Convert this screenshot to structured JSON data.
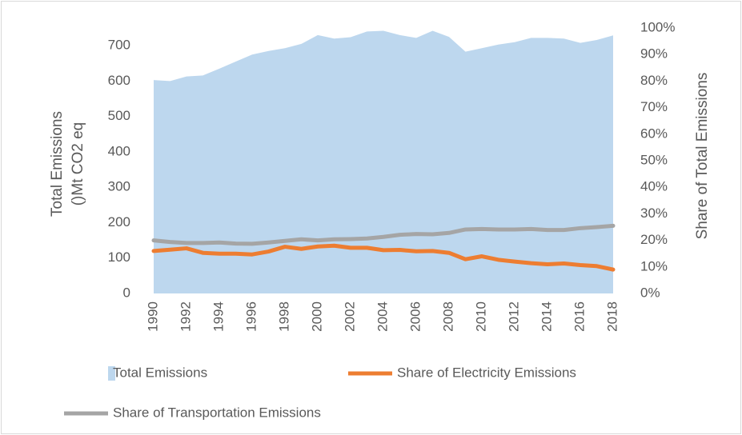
{
  "chart_data": {
    "type": "area_line",
    "categories": [
      "1990",
      null,
      "1992",
      null,
      "1994",
      null,
      "1996",
      null,
      "1998",
      null,
      "2000",
      null,
      "2002",
      null,
      "2004",
      null,
      "2006",
      null,
      "2008",
      null,
      "2010",
      null,
      "2012",
      null,
      "2014",
      null,
      "2016",
      null,
      "2018"
    ],
    "series": [
      {
        "name": "Total Emissions",
        "color": "#bdd7ee",
        "type": "area",
        "values": [
          603,
          600,
          613,
          616,
          635,
          655,
          675,
          685,
          693,
          705,
          730,
          720,
          724,
          740,
          742,
          730,
          722,
          742,
          725,
          683,
          693,
          703,
          710,
          722,
          722,
          720,
          708,
          716,
          729
        ]
      },
      {
        "name": "Share of Electricity Emissions",
        "color": "#ed7d31",
        "type": "line",
        "axis": "y2",
        "values": [
          16,
          16.5,
          17,
          15.3,
          15,
          15,
          14.7,
          15.8,
          17.6,
          16.8,
          17.7,
          18,
          17.2,
          17.2,
          16.3,
          16.4,
          15.9,
          16,
          15.3,
          12.9,
          14,
          12.7,
          12,
          11.4,
          11,
          11.3,
          10.7,
          10.3,
          9
        ]
      },
      {
        "name": "Share of Transportation Emissions",
        "color": "#a5a5a5",
        "type": "line",
        "axis": "y2",
        "values": [
          20,
          19.4,
          19,
          19,
          19.2,
          18.8,
          18.7,
          19.2,
          19.8,
          20.4,
          20,
          20.4,
          20.5,
          20.7,
          21.3,
          22.1,
          22.4,
          22.3,
          22.8,
          24.1,
          24.3,
          24.1,
          24.1,
          24.3,
          23.9,
          23.9,
          24.6,
          25,
          25.5
        ]
      }
    ],
    "ylabel": [
      "Total Emissions",
      "()Mt CO2 eq"
    ],
    "y2label": "Share of Total Emissions",
    "ylim": [
      0,
      750
    ],
    "yticks": [
      0,
      100,
      200,
      300,
      400,
      500,
      600,
      700
    ],
    "y2lim": [
      0,
      100
    ],
    "y2ticks": [
      {
        "value": 0,
        "label": "0%"
      },
      {
        "value": 10,
        "label": "10%"
      },
      {
        "value": 20,
        "label": "20%"
      },
      {
        "value": 30,
        "label": "30%"
      },
      {
        "value": 40,
        "label": "40%"
      },
      {
        "value": 50,
        "label": "50%"
      },
      {
        "value": 60,
        "label": "60%"
      },
      {
        "value": 70,
        "label": "70%"
      },
      {
        "value": 80,
        "label": "80%"
      },
      {
        "value": 90,
        "label": "90%"
      },
      {
        "value": 100,
        "label": "100%"
      }
    ],
    "grid": false
  }
}
